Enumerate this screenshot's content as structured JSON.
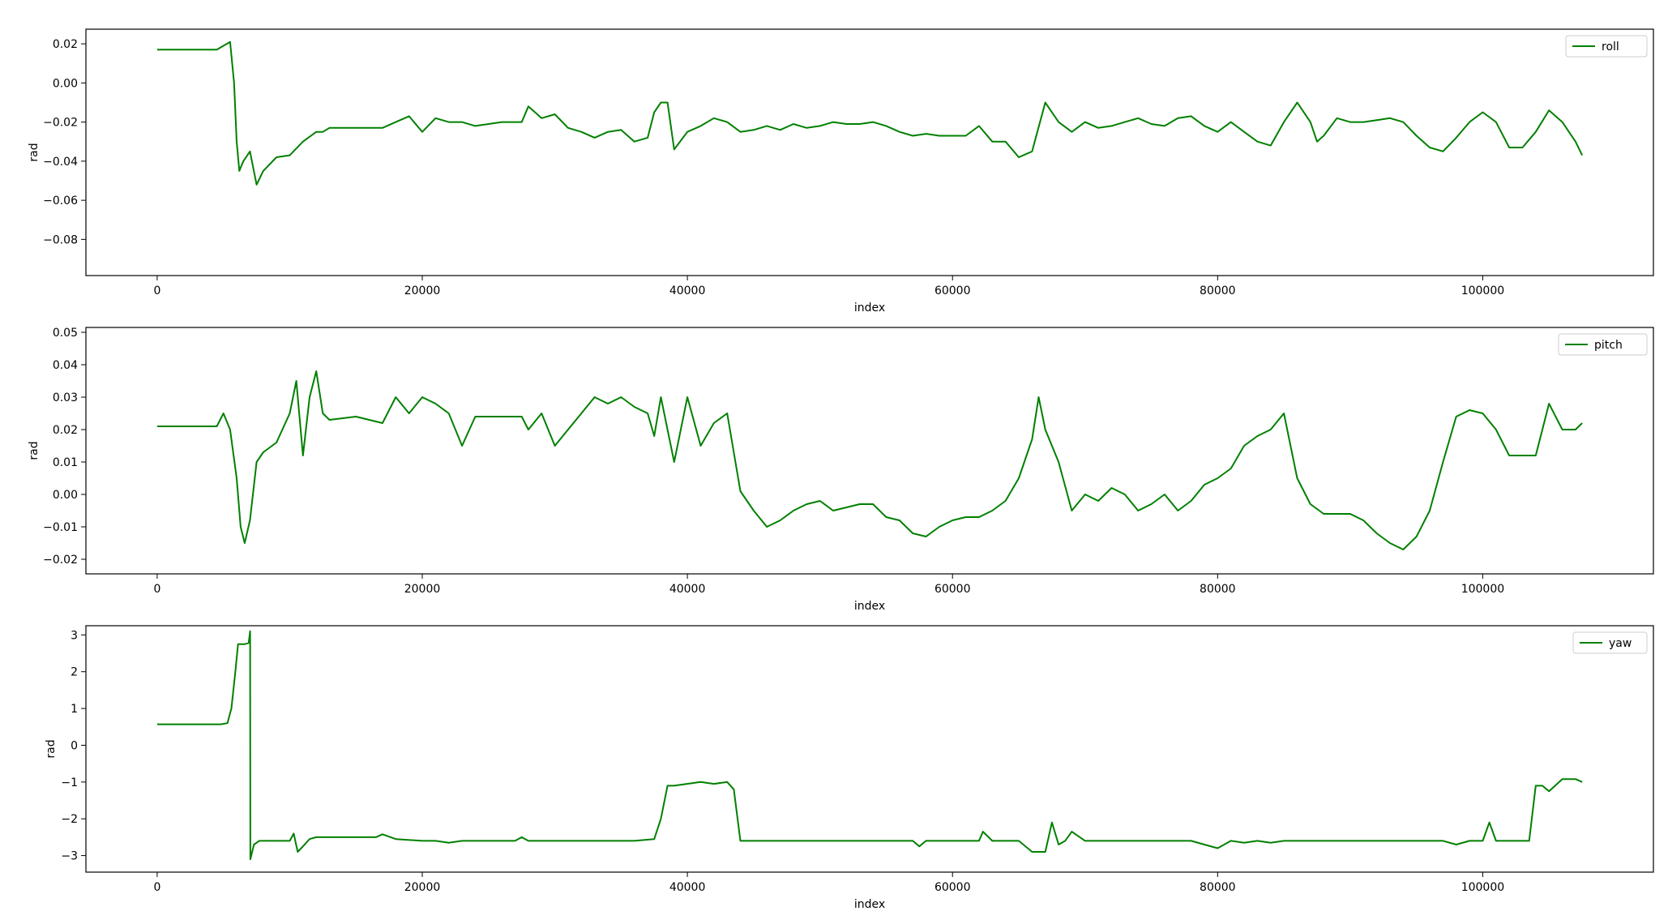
{
  "colors": {
    "line": "#008000",
    "axes": "#000000",
    "background": "#ffffff"
  },
  "chart_data": [
    {
      "type": "line",
      "title": "",
      "xlabel": "index",
      "ylabel": "rad",
      "xlim": [
        -5375,
        112875
      ],
      "ylim": [
        -0.0985,
        0.0275
      ],
      "xticks": [
        0,
        20000,
        40000,
        60000,
        80000,
        100000
      ],
      "xtick_labels": [
        "0",
        "20000",
        "40000",
        "60000",
        "80000",
        "100000"
      ],
      "yticks": [
        0.02,
        0.0,
        -0.02,
        -0.04,
        -0.06,
        -0.08
      ],
      "ytick_labels": [
        "0.02",
        "0.00",
        "−0.02",
        "−0.04",
        "−0.06",
        "−0.08"
      ],
      "grid": false,
      "legend": "upper right",
      "series": [
        {
          "name": "roll",
          "x": [
            0,
            2000,
            4500,
            5000,
            5500,
            5800,
            6000,
            6200,
            6500,
            7000,
            7500,
            8000,
            9000,
            10000,
            11000,
            12000,
            12500,
            13000,
            15000,
            17000,
            18000,
            19000,
            20000,
            21000,
            22000,
            23000,
            24000,
            26000,
            27500,
            28000,
            29000,
            30000,
            31000,
            32000,
            33000,
            34000,
            35000,
            36000,
            37000,
            37500,
            38000,
            38500,
            39000,
            40000,
            41000,
            42000,
            43000,
            44000,
            45000,
            46000,
            47000,
            48000,
            49000,
            50000,
            51000,
            52000,
            53000,
            54000,
            55000,
            56000,
            57000,
            58000,
            59000,
            60000,
            61000,
            62000,
            63000,
            64000,
            65000,
            66000,
            67000,
            68000,
            69000,
            70000,
            71000,
            72000,
            73000,
            74000,
            75000,
            76000,
            77000,
            78000,
            79000,
            80000,
            81000,
            82000,
            83000,
            84000,
            85000,
            86000,
            87000,
            87500,
            88000,
            89000,
            90000,
            91000,
            92000,
            93000,
            94000,
            95000,
            96000,
            97000,
            98000,
            99000,
            100000,
            101000,
            102000,
            103000,
            104000,
            105000,
            106000,
            107000,
            107500
          ],
          "y": [
            0.017,
            0.017,
            0.017,
            0.019,
            0.021,
            0.0,
            -0.03,
            -0.045,
            -0.04,
            -0.035,
            -0.052,
            -0.045,
            -0.038,
            -0.037,
            -0.03,
            -0.025,
            -0.025,
            -0.023,
            -0.023,
            -0.023,
            -0.02,
            -0.017,
            -0.025,
            -0.018,
            -0.02,
            -0.02,
            -0.022,
            -0.02,
            -0.02,
            -0.012,
            -0.018,
            -0.016,
            -0.023,
            -0.025,
            -0.028,
            -0.025,
            -0.024,
            -0.03,
            -0.028,
            -0.015,
            -0.01,
            -0.01,
            -0.034,
            -0.025,
            -0.022,
            -0.018,
            -0.02,
            -0.025,
            -0.024,
            -0.022,
            -0.024,
            -0.021,
            -0.023,
            -0.022,
            -0.02,
            -0.021,
            -0.021,
            -0.02,
            -0.022,
            -0.025,
            -0.027,
            -0.026,
            -0.027,
            -0.027,
            -0.027,
            -0.022,
            -0.03,
            -0.03,
            -0.038,
            -0.035,
            -0.01,
            -0.02,
            -0.025,
            -0.02,
            -0.023,
            -0.022,
            -0.02,
            -0.018,
            -0.021,
            -0.022,
            -0.018,
            -0.017,
            -0.022,
            -0.025,
            -0.02,
            -0.025,
            -0.03,
            -0.032,
            -0.02,
            -0.01,
            -0.02,
            -0.03,
            -0.027,
            -0.018,
            -0.02,
            -0.02,
            -0.019,
            -0.018,
            -0.02,
            -0.027,
            -0.033,
            -0.035,
            -0.028,
            -0.02,
            -0.015,
            -0.02,
            -0.033,
            -0.033,
            -0.025,
            -0.014,
            -0.02,
            -0.03,
            -0.037
          ]
        }
      ]
    },
    {
      "type": "line",
      "title": "",
      "xlabel": "index",
      "ylabel": "rad",
      "xlim": [
        -5375,
        112875
      ],
      "ylim": [
        -0.0245,
        0.0515
      ],
      "xticks": [
        0,
        20000,
        40000,
        60000,
        80000,
        100000
      ],
      "xtick_labels": [
        "0",
        "20000",
        "40000",
        "60000",
        "80000",
        "100000"
      ],
      "yticks": [
        0.05,
        0.04,
        0.03,
        0.02,
        0.01,
        0.0,
        -0.01,
        -0.02
      ],
      "ytick_labels": [
        "0.05",
        "0.04",
        "0.03",
        "0.02",
        "0.01",
        "0.00",
        "−0.01",
        "−0.02"
      ],
      "grid": false,
      "legend": "upper right",
      "series": [
        {
          "name": "pitch",
          "x": [
            0,
            2000,
            4500,
            5000,
            5500,
            6000,
            6300,
            6600,
            7000,
            7500,
            8000,
            9000,
            10000,
            10500,
            11000,
            11500,
            12000,
            12500,
            13000,
            15000,
            17000,
            18000,
            19000,
            20000,
            21000,
            22000,
            23000,
            24000,
            26000,
            27500,
            28000,
            29000,
            30000,
            31000,
            32000,
            33000,
            34000,
            35000,
            36000,
            37000,
            37500,
            38000,
            38500,
            39000,
            40000,
            41000,
            42000,
            43000,
            44000,
            45000,
            46000,
            47000,
            48000,
            49000,
            50000,
            51000,
            52000,
            53000,
            54000,
            55000,
            56000,
            57000,
            58000,
            59000,
            60000,
            61000,
            62000,
            63000,
            64000,
            65000,
            66000,
            66500,
            67000,
            68000,
            69000,
            70000,
            71000,
            72000,
            73000,
            74000,
            75000,
            76000,
            77000,
            78000,
            79000,
            80000,
            81000,
            82000,
            83000,
            84000,
            85000,
            86000,
            87000,
            88000,
            89000,
            90000,
            91000,
            92000,
            93000,
            94000,
            95000,
            96000,
            97000,
            98000,
            99000,
            100000,
            101000,
            102000,
            103000,
            104000,
            105000,
            106000,
            107000,
            107500
          ],
          "y": [
            0.021,
            0.021,
            0.021,
            0.025,
            0.02,
            0.005,
            -0.01,
            -0.015,
            -0.008,
            0.01,
            0.013,
            0.016,
            0.025,
            0.035,
            0.012,
            0.03,
            0.038,
            0.025,
            0.023,
            0.024,
            0.022,
            0.03,
            0.025,
            0.03,
            0.028,
            0.025,
            0.015,
            0.024,
            0.024,
            0.024,
            0.02,
            0.025,
            0.015,
            0.02,
            0.025,
            0.03,
            0.028,
            0.03,
            0.027,
            0.025,
            0.018,
            0.03,
            0.02,
            0.01,
            0.03,
            0.015,
            0.022,
            0.025,
            0.001,
            -0.005,
            -0.01,
            -0.008,
            -0.005,
            -0.003,
            -0.002,
            -0.005,
            -0.004,
            -0.003,
            -0.003,
            -0.007,
            -0.008,
            -0.012,
            -0.013,
            -0.01,
            -0.008,
            -0.007,
            -0.007,
            -0.005,
            -0.002,
            0.005,
            0.017,
            0.03,
            0.02,
            0.01,
            -0.005,
            0.0,
            -0.002,
            0.002,
            0.0,
            -0.005,
            -0.003,
            0.0,
            -0.005,
            -0.002,
            0.003,
            0.005,
            0.008,
            0.015,
            0.018,
            0.02,
            0.025,
            0.005,
            -0.003,
            -0.006,
            -0.006,
            -0.006,
            -0.008,
            -0.012,
            -0.015,
            -0.017,
            -0.013,
            -0.005,
            0.01,
            0.024,
            0.026,
            0.025,
            0.02,
            0.012,
            0.012,
            0.012,
            0.028,
            0.02,
            0.02,
            0.022
          ]
        }
      ]
    },
    {
      "type": "line",
      "title": "",
      "xlabel": "index",
      "ylabel": "rad",
      "xlim": [
        -5375,
        112875
      ],
      "ylim": [
        -3.45,
        3.25
      ],
      "xticks": [
        0,
        20000,
        40000,
        60000,
        80000,
        100000
      ],
      "xtick_labels": [
        "0",
        "20000",
        "40000",
        "60000",
        "80000",
        "100000"
      ],
      "yticks": [
        3,
        2,
        1,
        0,
        -1,
        -2,
        -3
      ],
      "ytick_labels": [
        "3",
        "2",
        "1",
        "0",
        "−1",
        "−2",
        "−3"
      ],
      "grid": false,
      "legend": "upper right",
      "series": [
        {
          "name": "yaw",
          "x": [
            0,
            2000,
            4800,
            5300,
            5600,
            5900,
            6100,
            6300,
            6600,
            6900,
            7010,
            7030,
            7100,
            7300,
            7700,
            8000,
            9000,
            10000,
            10300,
            10600,
            11000,
            11500,
            12000,
            13000,
            15000,
            16500,
            17000,
            18000,
            20000,
            21000,
            22000,
            23000,
            25000,
            27000,
            27500,
            28000,
            29000,
            30000,
            32000,
            34000,
            36000,
            37500,
            38000,
            38500,
            39000,
            41000,
            42000,
            43000,
            43500,
            44000,
            45000,
            50000,
            55000,
            57000,
            57500,
            58000,
            60000,
            62000,
            62300,
            63000,
            64000,
            65000,
            66000,
            66500,
            67000,
            67500,
            68000,
            68500,
            69000,
            70000,
            75000,
            78000,
            79000,
            80000,
            81000,
            82000,
            83000,
            84000,
            85000,
            90000,
            95000,
            97000,
            98000,
            99000,
            100000,
            100500,
            101000,
            102000,
            103000,
            103500,
            104000,
            104500,
            105000,
            106000,
            107000,
            107500
          ],
          "y": [
            0.57,
            0.57,
            0.57,
            0.6,
            1.0,
            2.0,
            2.75,
            2.75,
            2.75,
            2.78,
            3.1,
            -3.1,
            -3.0,
            -2.7,
            -2.6,
            -2.6,
            -2.6,
            -2.6,
            -2.4,
            -2.9,
            -2.75,
            -2.55,
            -2.5,
            -2.5,
            -2.5,
            -2.5,
            -2.42,
            -2.55,
            -2.6,
            -2.6,
            -2.65,
            -2.6,
            -2.6,
            -2.6,
            -2.5,
            -2.6,
            -2.6,
            -2.6,
            -2.6,
            -2.6,
            -2.6,
            -2.55,
            -2.0,
            -1.1,
            -1.1,
            -1.0,
            -1.05,
            -1.0,
            -1.2,
            -2.6,
            -2.6,
            -2.6,
            -2.6,
            -2.6,
            -2.75,
            -2.6,
            -2.6,
            -2.6,
            -2.35,
            -2.6,
            -2.6,
            -2.6,
            -2.9,
            -2.9,
            -2.9,
            -2.1,
            -2.7,
            -2.6,
            -2.35,
            -2.6,
            -2.6,
            -2.6,
            -2.7,
            -2.8,
            -2.6,
            -2.65,
            -2.6,
            -2.65,
            -2.6,
            -2.6,
            -2.6,
            -2.6,
            -2.7,
            -2.6,
            -2.6,
            -2.1,
            -2.6,
            -2.6,
            -2.6,
            -2.6,
            -1.1,
            -1.1,
            -1.25,
            -0.92,
            -0.92,
            -1.0
          ]
        }
      ]
    }
  ]
}
